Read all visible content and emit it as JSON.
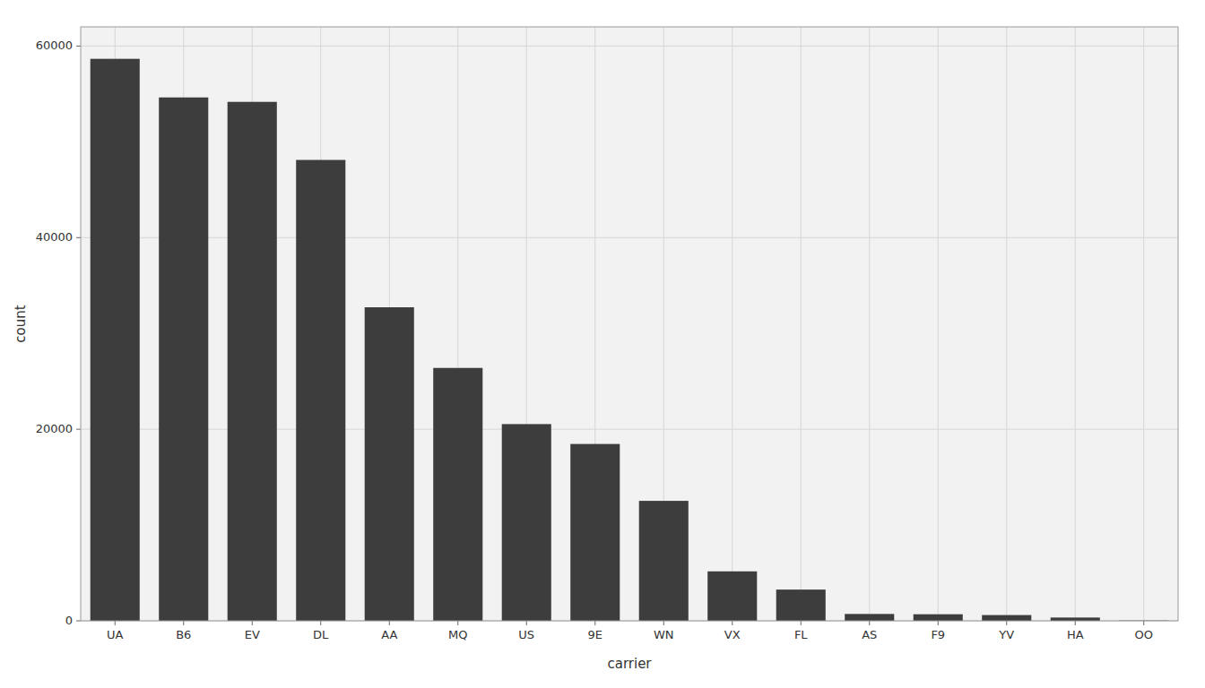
{
  "chart_data": {
    "type": "bar",
    "xlabel": "carrier",
    "ylabel": "count",
    "categories": [
      "UA",
      "B6",
      "EV",
      "DL",
      "AA",
      "MQ",
      "US",
      "9E",
      "WN",
      "VX",
      "FL",
      "AS",
      "F9",
      "YV",
      "HA",
      "OO"
    ],
    "values": [
      58665,
      54635,
      54173,
      48110,
      32729,
      26397,
      20536,
      18460,
      12522,
      5162,
      3260,
      714,
      685,
      601,
      342,
      32
    ],
    "color": "#3d3d3d",
    "ylim": [
      0,
      62000
    ],
    "yticks": [
      0,
      20000,
      40000,
      60000
    ],
    "grid": true
  }
}
